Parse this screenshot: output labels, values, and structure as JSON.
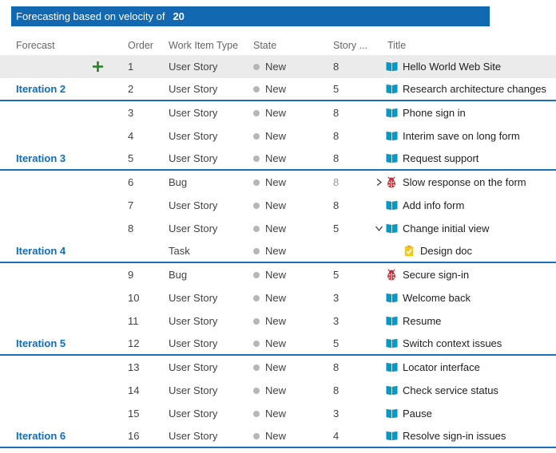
{
  "banner": {
    "label": "Forecasting based on velocity of",
    "velocity": "20"
  },
  "colors": {
    "banner_blue": "#1268b1",
    "forecast_line_blue": "#1a6fb5",
    "iteration_label_blue": "#0e6ebe",
    "user_story_icon": "#009ccc",
    "bug_icon": "#c62834",
    "task_icon": "#f2ca1d",
    "add_plus_green": "#2f7e2f",
    "selected_row_bg": "#ebebeb",
    "state_dot_gray": "#b8b6b4"
  },
  "table": {
    "columns": [
      "Forecast",
      "Order",
      "Work Item Type",
      "State",
      "Story ...",
      "Title"
    ],
    "rows": [
      {
        "forecast": "",
        "add": true,
        "order": "1",
        "type": "User Story",
        "state": "New",
        "points": "8",
        "icon": "user-story",
        "title": "Hello World Web Site",
        "selected": true
      },
      {
        "forecast": "Iteration 2",
        "order": "2",
        "type": "User Story",
        "state": "New",
        "points": "5",
        "icon": "user-story",
        "title": "Research architecture changes",
        "forecast_line": true
      },
      {
        "forecast": "",
        "order": "3",
        "type": "User Story",
        "state": "New",
        "points": "8",
        "icon": "user-story",
        "title": "Phone sign in"
      },
      {
        "forecast": "",
        "order": "4",
        "type": "User Story",
        "state": "New",
        "points": "8",
        "icon": "user-story",
        "title": "Interim save on long form"
      },
      {
        "forecast": "Iteration 3",
        "order": "5",
        "type": "User Story",
        "state": "New",
        "points": "8",
        "icon": "user-story",
        "title": "Request support",
        "forecast_line": true
      },
      {
        "forecast": "",
        "order": "6",
        "type": "Bug",
        "state": "New",
        "points": "8",
        "points_muted": true,
        "icon": "bug",
        "chevron": "collapsed",
        "title": "Slow response on the form"
      },
      {
        "forecast": "",
        "order": "7",
        "type": "User Story",
        "state": "New",
        "points": "8",
        "icon": "user-story",
        "title": "Add info form"
      },
      {
        "forecast": "",
        "order": "8",
        "type": "User Story",
        "state": "New",
        "points": "5",
        "icon": "user-story",
        "chevron": "expanded",
        "title": "Change initial view"
      },
      {
        "forecast": "Iteration 4",
        "order": "",
        "type": "Task",
        "state": "New",
        "points": "",
        "icon": "task",
        "indent": true,
        "title": "Design doc",
        "forecast_line": true
      },
      {
        "forecast": "",
        "order": "9",
        "type": "Bug",
        "state": "New",
        "points": "5",
        "icon": "bug",
        "title": "Secure sign-in"
      },
      {
        "forecast": "",
        "order": "10",
        "type": "User Story",
        "state": "New",
        "points": "3",
        "icon": "user-story",
        "title": "Welcome back"
      },
      {
        "forecast": "",
        "order": "11",
        "type": "User Story",
        "state": "New",
        "points": "3",
        "icon": "user-story",
        "title": "Resume"
      },
      {
        "forecast": "Iteration 5",
        "order": "12",
        "type": "User Story",
        "state": "New",
        "points": "5",
        "icon": "user-story",
        "title": "Switch context issues",
        "forecast_line": true
      },
      {
        "forecast": "",
        "order": "13",
        "type": "User Story",
        "state": "New",
        "points": "8",
        "icon": "user-story",
        "title": "Locator interface"
      },
      {
        "forecast": "",
        "order": "14",
        "type": "User Story",
        "state": "New",
        "points": "8",
        "icon": "user-story",
        "title": "Check service status"
      },
      {
        "forecast": "",
        "order": "15",
        "type": "User Story",
        "state": "New",
        "points": "3",
        "icon": "user-story",
        "title": "Pause"
      },
      {
        "forecast": "Iteration 6",
        "order": "16",
        "type": "User Story",
        "state": "New",
        "points": "4",
        "icon": "user-story",
        "title": "Resolve sign-in issues",
        "forecast_line": true
      }
    ]
  }
}
